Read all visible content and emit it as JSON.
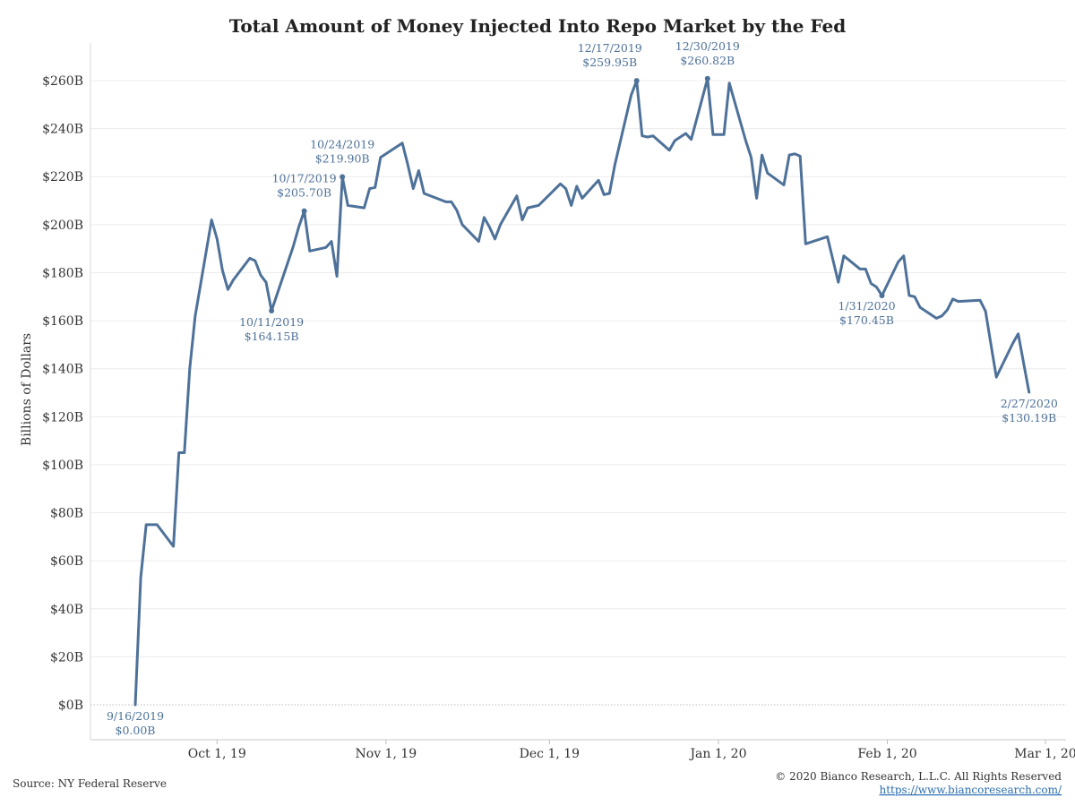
{
  "chart_data": {
    "type": "line",
    "title": "Total Amount of Money Injected Into Repo Market by the Fed",
    "ylabel": "Billions of Dollars",
    "xlabel": "",
    "ylim": [
      -14,
      270
    ],
    "yticks": [
      0,
      20,
      40,
      60,
      80,
      100,
      120,
      140,
      160,
      180,
      200,
      220,
      240,
      260
    ],
    "ytick_labels": [
      "$0B",
      "$20B",
      "$40B",
      "$60B",
      "$80B",
      "$100B",
      "$120B",
      "$140B",
      "$160B",
      "$180B",
      "$200B",
      "$220B",
      "$240B",
      "$260B"
    ],
    "xticks": [
      {
        "date": "2019-10-01",
        "label": "Oct 1, 19"
      },
      {
        "date": "2019-11-01",
        "label": "Nov 1, 19"
      },
      {
        "date": "2019-12-01",
        "label": "Dec 1, 19"
      },
      {
        "date": "2020-01-01",
        "label": "Jan 1, 20"
      },
      {
        "date": "2020-02-01",
        "label": "Feb 1, 20"
      },
      {
        "date": "2020-03-01",
        "label": "Mar 1, 20"
      }
    ],
    "xlim": [
      "2019-09-16",
      "2020-03-01"
    ],
    "grid": "horizontal",
    "color": "#4e7199",
    "series": [
      {
        "points": [
          [
            "2019-09-16",
            0
          ],
          [
            "2019-09-17",
            53
          ],
          [
            "2019-09-18",
            75
          ],
          [
            "2019-09-19",
            75
          ],
          [
            "2019-09-20",
            75
          ],
          [
            "2019-09-23",
            66
          ],
          [
            "2019-09-24",
            105
          ],
          [
            "2019-09-25",
            105
          ],
          [
            "2019-09-26",
            140
          ],
          [
            "2019-09-27",
            162
          ],
          [
            "2019-09-30",
            202
          ],
          [
            "2019-10-01",
            194
          ],
          [
            "2019-10-02",
            181
          ],
          [
            "2019-10-03",
            173
          ],
          [
            "2019-10-04",
            177
          ],
          [
            "2019-10-07",
            186
          ],
          [
            "2019-10-08",
            185
          ],
          [
            "2019-10-09",
            179
          ],
          [
            "2019-10-10",
            176
          ],
          [
            "2019-10-11",
            164.15
          ],
          [
            "2019-10-15",
            191
          ],
          [
            "2019-10-16",
            199
          ],
          [
            "2019-10-17",
            205.7
          ],
          [
            "2019-10-18",
            189
          ],
          [
            "2019-10-21",
            190.5
          ],
          [
            "2019-10-22",
            193
          ],
          [
            "2019-10-23",
            178.5
          ],
          [
            "2019-10-24",
            219.9
          ],
          [
            "2019-10-25",
            208
          ],
          [
            "2019-10-28",
            207
          ],
          [
            "2019-10-29",
            215
          ],
          [
            "2019-10-30",
            215.5
          ],
          [
            "2019-10-31",
            228
          ],
          [
            "2019-11-04",
            234
          ],
          [
            "2019-11-05",
            225
          ],
          [
            "2019-11-06",
            215
          ],
          [
            "2019-11-07",
            222.5
          ],
          [
            "2019-11-08",
            213
          ],
          [
            "2019-11-12",
            209.5
          ],
          [
            "2019-11-13",
            209.5
          ],
          [
            "2019-11-14",
            206
          ],
          [
            "2019-11-15",
            200
          ],
          [
            "2019-11-18",
            193
          ],
          [
            "2019-11-19",
            203
          ],
          [
            "2019-11-20",
            199
          ],
          [
            "2019-11-21",
            194
          ],
          [
            "2019-11-22",
            200
          ],
          [
            "2019-11-25",
            212
          ],
          [
            "2019-11-26",
            202
          ],
          [
            "2019-11-27",
            207
          ],
          [
            "2019-11-29",
            208
          ],
          [
            "2019-12-03",
            217
          ],
          [
            "2019-12-04",
            215
          ],
          [
            "2019-12-05",
            208
          ],
          [
            "2019-12-06",
            216
          ],
          [
            "2019-12-07",
            211
          ],
          [
            "2019-12-10",
            218.5
          ],
          [
            "2019-12-11",
            212.5
          ],
          [
            "2019-12-12",
            213
          ],
          [
            "2019-12-13",
            225
          ],
          [
            "2019-12-16",
            254
          ],
          [
            "2019-12-17",
            259.95
          ],
          [
            "2019-12-18",
            237
          ],
          [
            "2019-12-19",
            236.5
          ],
          [
            "2019-12-20",
            237
          ],
          [
            "2019-12-23",
            231
          ],
          [
            "2019-12-24",
            235
          ],
          [
            "2019-12-26",
            238
          ],
          [
            "2019-12-27",
            235.5
          ],
          [
            "2019-12-30",
            260.82
          ],
          [
            "2019-12-31",
            237.5
          ],
          [
            "2020-01-02",
            237.5
          ],
          [
            "2020-01-03",
            259
          ],
          [
            "2020-01-06",
            235
          ],
          [
            "2020-01-07",
            228
          ],
          [
            "2020-01-08",
            211
          ],
          [
            "2020-01-09",
            229
          ],
          [
            "2020-01-10",
            221.5
          ],
          [
            "2020-01-13",
            216.5
          ],
          [
            "2020-01-14",
            229
          ],
          [
            "2020-01-15",
            229.5
          ],
          [
            "2020-01-16",
            228.5
          ],
          [
            "2020-01-17",
            192
          ],
          [
            "2020-01-21",
            195
          ],
          [
            "2020-01-23",
            176
          ],
          [
            "2020-01-24",
            187
          ],
          [
            "2020-01-27",
            181.5
          ],
          [
            "2020-01-28",
            181.5
          ],
          [
            "2020-01-29",
            175.5
          ],
          [
            "2020-01-30",
            174
          ],
          [
            "2020-01-31",
            170.45
          ],
          [
            "2020-02-03",
            184.5
          ],
          [
            "2020-02-04",
            187
          ],
          [
            "2020-02-05",
            170.5
          ],
          [
            "2020-02-06",
            170
          ],
          [
            "2020-02-07",
            165.5
          ],
          [
            "2020-02-10",
            161
          ],
          [
            "2020-02-11",
            162
          ],
          [
            "2020-02-12",
            164.5
          ],
          [
            "2020-02-13",
            169
          ],
          [
            "2020-02-14",
            168
          ],
          [
            "2020-02-18",
            168.5
          ],
          [
            "2020-02-19",
            164
          ],
          [
            "2020-02-20",
            150
          ],
          [
            "2020-02-21",
            136.5
          ],
          [
            "2020-02-24",
            150.5
          ],
          [
            "2020-02-25",
            154.5
          ],
          [
            "2020-02-27",
            130.19
          ]
        ]
      }
    ],
    "annotations": [
      {
        "date": "2019-09-16",
        "value": 0,
        "lines": [
          "9/16/2019",
          "$0.00B"
        ],
        "pos": "below",
        "marker": false
      },
      {
        "date": "2019-10-11",
        "value": 164.15,
        "lines": [
          "10/11/2019",
          "$164.15B"
        ],
        "pos": "below",
        "marker": true
      },
      {
        "date": "2019-10-17",
        "value": 205.7,
        "lines": [
          "10/17/2019",
          "$205.70B"
        ],
        "pos": "above",
        "marker": true
      },
      {
        "date": "2019-10-24",
        "value": 219.9,
        "lines": [
          "10/24/2019",
          "$219.90B"
        ],
        "pos": "above",
        "marker": true
      },
      {
        "date": "2019-12-17",
        "value": 259.95,
        "lines": [
          "12/17/2019",
          "$259.95B"
        ],
        "pos": "above-left",
        "marker": true
      },
      {
        "date": "2019-12-30",
        "value": 260.82,
        "lines": [
          "12/30/2019",
          "$260.82B"
        ],
        "pos": "above",
        "marker": true
      },
      {
        "date": "2020-01-31",
        "value": 170.45,
        "lines": [
          "1/31/2020",
          "$170.45B"
        ],
        "pos": "below-left",
        "marker": true
      },
      {
        "date": "2020-02-27",
        "value": 130.19,
        "lines": [
          "2/27/2020",
          "$130.19B"
        ],
        "pos": "below",
        "marker": false
      }
    ]
  },
  "footer": {
    "source": "Source: NY Federal Reserve",
    "copyright": "© 2020 Bianco Research, L.L.C. All Rights Reserved",
    "url": "https://www.biancoresearch.com/"
  }
}
